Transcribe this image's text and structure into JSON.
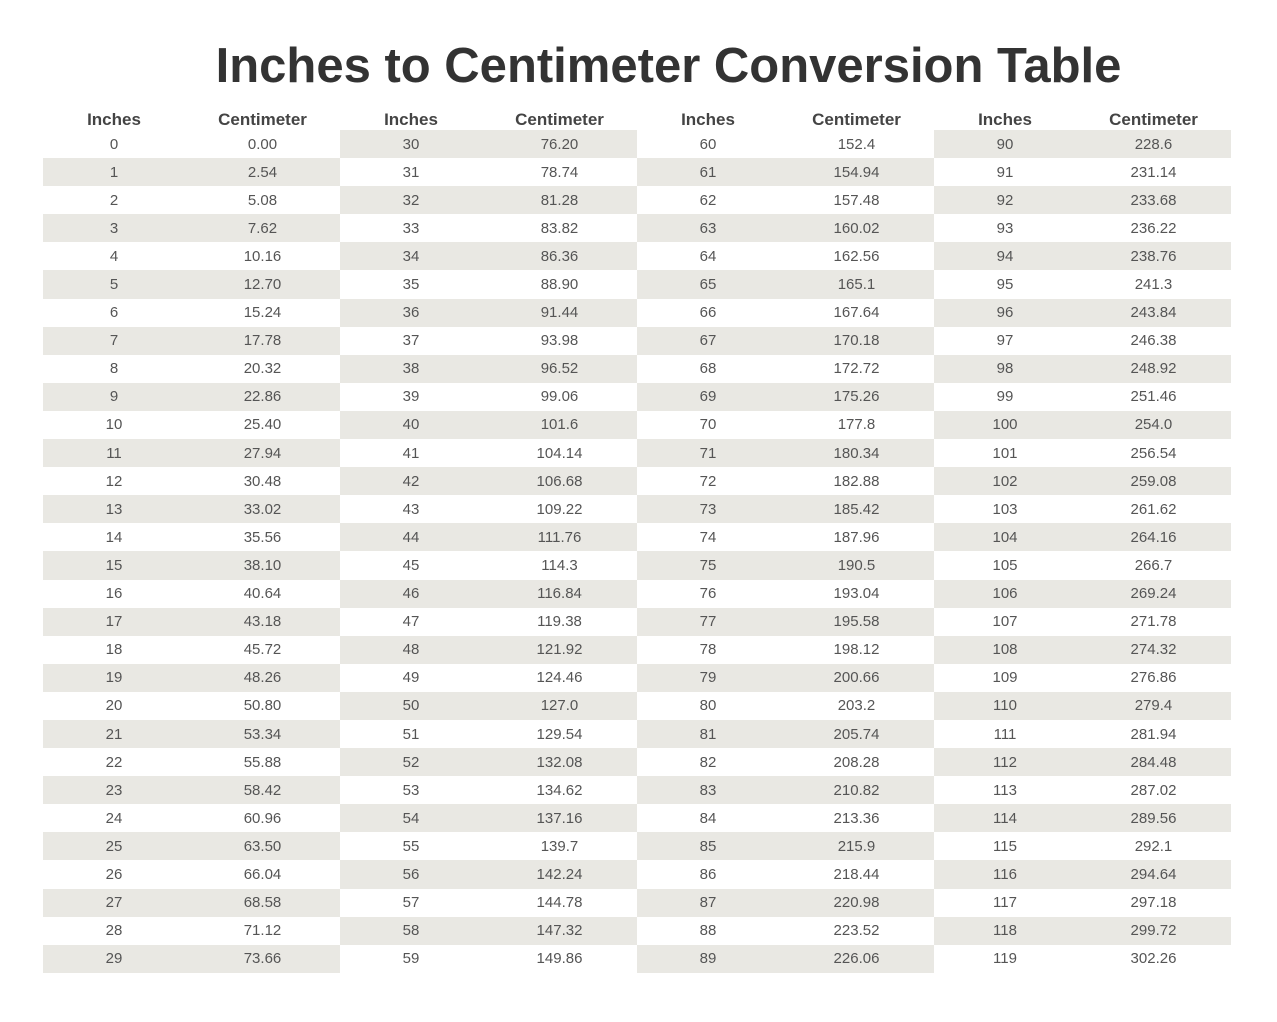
{
  "title": "Inches to Centimeter Conversion Table",
  "headers": {
    "inches": "Inches",
    "cm": "Centimeter"
  },
  "colors": {
    "shade": "#e9e8e3",
    "text": "#555555",
    "title": "#333333"
  },
  "groups": [
    {
      "rows": [
        [
          "0",
          "0.00"
        ],
        [
          "1",
          "2.54"
        ],
        [
          "2",
          "5.08"
        ],
        [
          "3",
          "7.62"
        ],
        [
          "4",
          "10.16"
        ],
        [
          "5",
          "12.70"
        ],
        [
          "6",
          "15.24"
        ],
        [
          "7",
          "17.78"
        ],
        [
          "8",
          "20.32"
        ],
        [
          "9",
          "22.86"
        ],
        [
          "10",
          "25.40"
        ],
        [
          "11",
          "27.94"
        ],
        [
          "12",
          "30.48"
        ],
        [
          "13",
          "33.02"
        ],
        [
          "14",
          "35.56"
        ],
        [
          "15",
          "38.10"
        ],
        [
          "16",
          "40.64"
        ],
        [
          "17",
          "43.18"
        ],
        [
          "18",
          "45.72"
        ],
        [
          "19",
          "48.26"
        ],
        [
          "20",
          "50.80"
        ],
        [
          "21",
          "53.34"
        ],
        [
          "22",
          "55.88"
        ],
        [
          "23",
          "58.42"
        ],
        [
          "24",
          "60.96"
        ],
        [
          "25",
          "63.50"
        ],
        [
          "26",
          "66.04"
        ],
        [
          "27",
          "68.58"
        ],
        [
          "28",
          "71.12"
        ],
        [
          "29",
          "73.66"
        ]
      ]
    },
    {
      "rows": [
        [
          "30",
          "76.20"
        ],
        [
          "31",
          "78.74"
        ],
        [
          "32",
          "81.28"
        ],
        [
          "33",
          "83.82"
        ],
        [
          "34",
          "86.36"
        ],
        [
          "35",
          "88.90"
        ],
        [
          "36",
          "91.44"
        ],
        [
          "37",
          "93.98"
        ],
        [
          "38",
          "96.52"
        ],
        [
          "39",
          "99.06"
        ],
        [
          "40",
          "101.6"
        ],
        [
          "41",
          "104.14"
        ],
        [
          "42",
          "106.68"
        ],
        [
          "43",
          "109.22"
        ],
        [
          "44",
          "111.76"
        ],
        [
          "45",
          "114.3"
        ],
        [
          "46",
          "116.84"
        ],
        [
          "47",
          "119.38"
        ],
        [
          "48",
          "121.92"
        ],
        [
          "49",
          "124.46"
        ],
        [
          "50",
          "127.0"
        ],
        [
          "51",
          "129.54"
        ],
        [
          "52",
          "132.08"
        ],
        [
          "53",
          "134.62"
        ],
        [
          "54",
          "137.16"
        ],
        [
          "55",
          "139.7"
        ],
        [
          "56",
          "142.24"
        ],
        [
          "57",
          "144.78"
        ],
        [
          "58",
          "147.32"
        ],
        [
          "59",
          "149.86"
        ]
      ]
    },
    {
      "rows": [
        [
          "60",
          "152.4"
        ],
        [
          "61",
          "154.94"
        ],
        [
          "62",
          "157.48"
        ],
        [
          "63",
          "160.02"
        ],
        [
          "64",
          "162.56"
        ],
        [
          "65",
          "165.1"
        ],
        [
          "66",
          "167.64"
        ],
        [
          "67",
          "170.18"
        ],
        [
          "68",
          "172.72"
        ],
        [
          "69",
          "175.26"
        ],
        [
          "70",
          "177.8"
        ],
        [
          "71",
          "180.34"
        ],
        [
          "72",
          "182.88"
        ],
        [
          "73",
          "185.42"
        ],
        [
          "74",
          "187.96"
        ],
        [
          "75",
          "190.5"
        ],
        [
          "76",
          "193.04"
        ],
        [
          "77",
          "195.58"
        ],
        [
          "78",
          "198.12"
        ],
        [
          "79",
          "200.66"
        ],
        [
          "80",
          "203.2"
        ],
        [
          "81",
          "205.74"
        ],
        [
          "82",
          "208.28"
        ],
        [
          "83",
          "210.82"
        ],
        [
          "84",
          "213.36"
        ],
        [
          "85",
          "215.9"
        ],
        [
          "86",
          "218.44"
        ],
        [
          "87",
          "220.98"
        ],
        [
          "88",
          "223.52"
        ],
        [
          "89",
          "226.06"
        ]
      ]
    },
    {
      "rows": [
        [
          "90",
          "228.6"
        ],
        [
          "91",
          "231.14"
        ],
        [
          "92",
          "233.68"
        ],
        [
          "93",
          "236.22"
        ],
        [
          "94",
          "238.76"
        ],
        [
          "95",
          "241.3"
        ],
        [
          "96",
          "243.84"
        ],
        [
          "97",
          "246.38"
        ],
        [
          "98",
          "248.92"
        ],
        [
          "99",
          "251.46"
        ],
        [
          "100",
          "254.0"
        ],
        [
          "101",
          "256.54"
        ],
        [
          "102",
          "259.08"
        ],
        [
          "103",
          "261.62"
        ],
        [
          "104",
          "264.16"
        ],
        [
          "105",
          "266.7"
        ],
        [
          "106",
          "269.24"
        ],
        [
          "107",
          "271.78"
        ],
        [
          "108",
          "274.32"
        ],
        [
          "109",
          "276.86"
        ],
        [
          "110",
          "279.4"
        ],
        [
          "111",
          "281.94"
        ],
        [
          "112",
          "284.48"
        ],
        [
          "113",
          "287.02"
        ],
        [
          "114",
          "289.56"
        ],
        [
          "115",
          "292.1"
        ],
        [
          "116",
          "294.64"
        ],
        [
          "117",
          "297.18"
        ],
        [
          "118",
          "299.72"
        ],
        [
          "119",
          "302.26"
        ]
      ]
    }
  ]
}
